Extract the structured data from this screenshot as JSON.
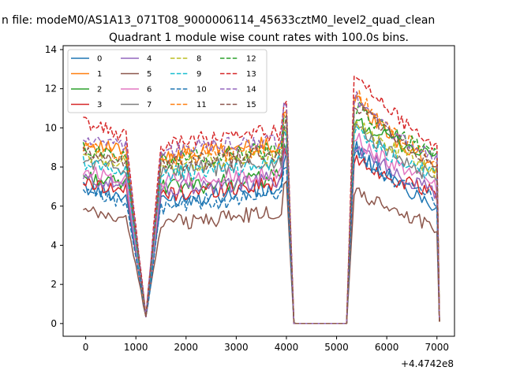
{
  "figure": {
    "suptitle": "n file: modeM0/AS1A13_071T08_9000006114_45633cztM0_level2_quad_clean",
    "title": "Quadrant 1 module wise count rates with 100.0s bins."
  },
  "chart_data": {
    "type": "line",
    "title": "Quadrant 1 module wise count rates with 100.0s bins.",
    "xlabel": "",
    "ylabel": "",
    "xlim": [
      -450,
      7350
    ],
    "ylim": [
      -0.65,
      14.2
    ],
    "xticks": [
      0,
      1000,
      2000,
      3000,
      4000,
      5000,
      6000,
      7000
    ],
    "xtick_labels": [
      "0",
      "1000",
      "2000",
      "3000",
      "4000",
      "5000",
      "6000",
      "7000"
    ],
    "yticks": [
      0,
      2,
      4,
      6,
      8,
      10,
      12,
      14
    ],
    "ytick_labels": [
      "0",
      "2",
      "4",
      "6",
      "8",
      "10",
      "12",
      "14"
    ],
    "x_offset_label": "+4.4742e8",
    "grid": false,
    "legend": {
      "placement": "top-left",
      "columns": 4
    },
    "x": [
      -50,
      0,
      50,
      100,
      150,
      200,
      250,
      300,
      350,
      400,
      450,
      500,
      550,
      600,
      650,
      700,
      750,
      800,
      850,
      900,
      950,
      1000,
      1050,
      1100,
      1150,
      1200,
      1250,
      1300,
      1350,
      1400,
      1450,
      1500,
      1550,
      1600,
      1650,
      1700,
      1750,
      1800,
      1850,
      1900,
      1950,
      2000,
      2050,
      2100,
      2150,
      2200,
      2250,
      2300,
      2350,
      2400,
      2450,
      2500,
      2550,
      2600,
      2650,
      2700,
      2750,
      2800,
      2850,
      2900,
      2950,
      3000,
      3050,
      3100,
      3150,
      3200,
      3250,
      3300,
      3350,
      3400,
      3450,
      3500,
      3550,
      3600,
      3650,
      3700,
      3750,
      3800,
      3850,
      3900,
      3950,
      4000,
      4050,
      4100,
      4150,
      4200,
      4250,
      4300,
      4350,
      4400,
      4450,
      4500,
      4550,
      4600,
      4650,
      4700,
      4750,
      4800,
      4850,
      4900,
      4950,
      5000,
      5050,
      5100,
      5150,
      5200,
      5250,
      5300,
      5350,
      5400,
      5450,
      5500,
      5550,
      5600,
      5650,
      5700,
      5750,
      5800,
      5850,
      5900,
      5950,
      6000,
      6050,
      6100,
      6150,
      6200,
      6250,
      6300,
      6350,
      6400,
      6450,
      6500,
      6550,
      6600,
      6650,
      6700,
      6750,
      6800,
      6850,
      6900,
      6950,
      7000,
      7050
    ],
    "series": [
      {
        "name": "0",
        "color": "#1f77b4",
        "dash": "solid",
        "level": 6.3,
        "peak2": 9.2,
        "end2": 6.0
      },
      {
        "name": "1",
        "color": "#ff7f0e",
        "dash": "solid",
        "level": 8.6,
        "peak2": 11.8,
        "end2": 7.9
      },
      {
        "name": "2",
        "color": "#2ca02c",
        "dash": "solid",
        "level": 6.9,
        "peak2": 10.6,
        "end2": 8.5
      },
      {
        "name": "3",
        "color": "#d62728",
        "dash": "solid",
        "level": 6.6,
        "peak2": 8.6,
        "end2": 6.6
      },
      {
        "name": "4",
        "color": "#9467bd",
        "dash": "solid",
        "level": 6.8,
        "peak2": 9.4,
        "end2": 6.7
      },
      {
        "name": "5",
        "color": "#8c564b",
        "dash": "solid",
        "level": 5.1,
        "peak2": 6.9,
        "end2": 5.0
      },
      {
        "name": "6",
        "color": "#e377c2",
        "dash": "solid",
        "level": 7.2,
        "peak2": 9.8,
        "end2": 7.0
      },
      {
        "name": "7",
        "color": "#7f7f7f",
        "dash": "solid",
        "level": 7.7,
        "peak2": 10.4,
        "end2": 7.4
      },
      {
        "name": "8",
        "color": "#bcbd22",
        "dash": "dashed",
        "level": 8.0,
        "peak2": 10.6,
        "end2": 7.8
      },
      {
        "name": "9",
        "color": "#17becf",
        "dash": "dashed",
        "level": 7.6,
        "peak2": 10.1,
        "end2": 7.5
      },
      {
        "name": "10",
        "color": "#1f77b4",
        "dash": "dashed",
        "level": 6.0,
        "peak2": 9.0,
        "end2": 6.3
      },
      {
        "name": "11",
        "color": "#ff7f0e",
        "dash": "dashed",
        "level": 8.4,
        "peak2": 12.2,
        "end2": 8.3
      },
      {
        "name": "12",
        "color": "#2ca02c",
        "dash": "dashed",
        "level": 8.3,
        "peak2": 11.3,
        "end2": 8.6
      },
      {
        "name": "13",
        "color": "#d62728",
        "dash": "dashed",
        "level": 9.2,
        "peak2": 13.3,
        "end2": 9.0
      },
      {
        "name": "14",
        "color": "#9467bd",
        "dash": "dashed",
        "level": 8.8,
        "peak2": 11.9,
        "end2": 8.3
      },
      {
        "name": "15",
        "color": "#8c564b",
        "dash": "dashed",
        "level": 8.1,
        "peak2": 11.6,
        "end2": 8.0
      }
    ]
  }
}
